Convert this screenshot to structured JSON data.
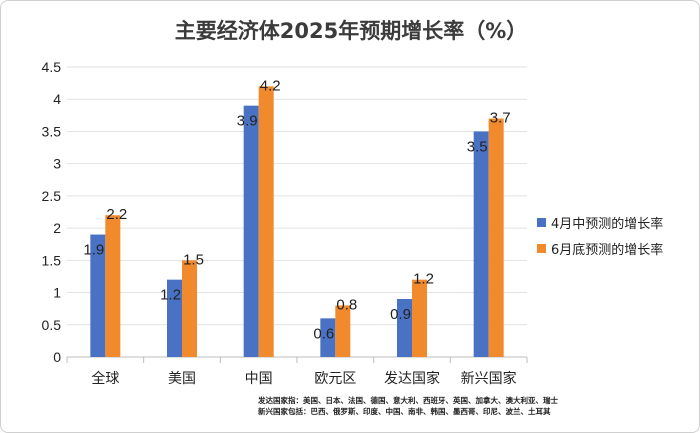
{
  "chart_data": {
    "type": "bar",
    "title": "主要经济体2025年预期增长率（%）",
    "categories": [
      "全球",
      "美国",
      "中国",
      "欧元区",
      "发达国家",
      "新兴国家"
    ],
    "series": [
      {
        "name": "4月中预测的增长率",
        "values": [
          1.9,
          1.2,
          3.9,
          0.6,
          0.9,
          3.5
        ],
        "labels": [
          "1.9",
          "1.2",
          "3.9",
          "0.6",
          "0.9",
          "3.5"
        ]
      },
      {
        "name": "6月底预测的增长率",
        "values": [
          2.2,
          1.5,
          4.2,
          0.8,
          1.2,
          3.7
        ],
        "labels": [
          "2.2",
          "1.5",
          "4.2",
          "0.8",
          "1.2",
          "3.7"
        ]
      }
    ],
    "ylim": [
      0,
      4.5
    ],
    "yticks": [
      "0",
      "0.5",
      "1",
      "1.5",
      "2",
      "2.5",
      "3",
      "3.5",
      "4",
      "4.5"
    ],
    "grid": true,
    "legend_position": "right",
    "colors": [
      "#4a72c4",
      "#f08a2c"
    ]
  },
  "footnote": {
    "line1": "发达国家指：美国、日本、法国、德国、意大利、西班牙、英国、加拿大、澳大利亚、瑞士",
    "line2": "新兴国家包括：巴西、俄罗斯、印度、中国、南非、韩国、墨西哥、印尼、波兰、土耳其"
  }
}
